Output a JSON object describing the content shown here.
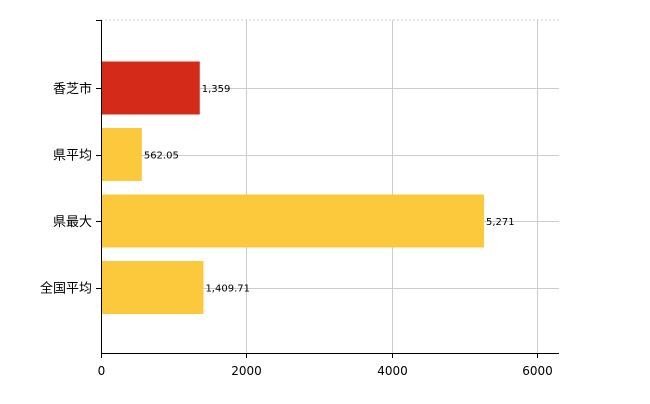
{
  "chart_data": {
    "type": "bar",
    "orientation": "horizontal",
    "categories": [
      "香芝市",
      "県平均",
      "県最大",
      "全国平均"
    ],
    "values": [
      1359,
      562.05,
      5271,
      1409.71
    ],
    "value_labels": [
      "1,359",
      "562.05",
      "5,271",
      "1,409.71"
    ],
    "bar_colors": [
      "#d42a1a",
      "#fbc93b",
      "#fbc93b",
      "#fbc93b"
    ],
    "xlim": [
      0,
      6300
    ],
    "x_ticks": [
      0,
      2000,
      4000,
      6000
    ],
    "x_tick_labels": [
      "0",
      "2000",
      "4000",
      "6000"
    ],
    "grid": true,
    "grid_color": "#cccccc",
    "title": "",
    "xlabel": "",
    "ylabel": ""
  }
}
